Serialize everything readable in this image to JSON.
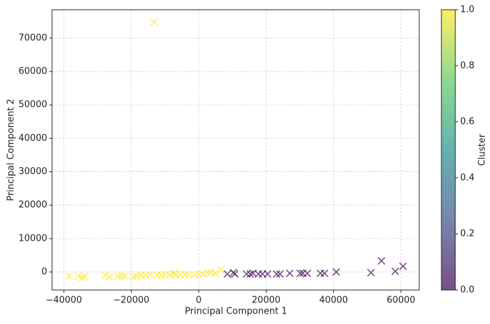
{
  "chart_data": {
    "type": "scatter",
    "xlabel": "Principal Component 1",
    "ylabel": "Principal Component 2",
    "x": [
      -38350,
      -35700,
      -34600,
      -33800,
      -27800,
      -26400,
      -23900,
      -22900,
      -21900,
      -19400,
      -18400,
      -17100,
      -15700,
      -14400,
      -13200,
      -12400,
      -11100,
      -9900,
      -8500,
      -7400,
      -6800,
      -5400,
      -4100,
      -2900,
      -1200,
      0,
      1200,
      2500,
      3500,
      4900,
      6600,
      8500,
      10300,
      10700,
      14200,
      15300,
      16100,
      17700,
      18900,
      20400,
      23100,
      24100,
      27000,
      30100,
      30900,
      32200,
      36100,
      37300,
      40800,
      51100,
      54200,
      58300,
      60600
    ],
    "y": [
      -1250,
      -1250,
      -1660,
      -1450,
      -1000,
      -1450,
      -1250,
      -1250,
      -1250,
      -1450,
      -1250,
      -1000,
      -1000,
      -800,
      74800,
      -1000,
      -1000,
      -800,
      -800,
      -400,
      -800,
      -800,
      -800,
      -800,
      -800,
      -800,
      -600,
      -200,
      -200,
      -400,
      600,
      -600,
      -200,
      -600,
      -600,
      -600,
      -400,
      -600,
      -600,
      -600,
      -600,
      -600,
      -400,
      -400,
      -400,
      -400,
      -400,
      -400,
      0,
      -200,
      3300,
      200,
      1700
    ],
    "cluster": [
      1,
      1,
      1,
      1,
      1,
      1,
      1,
      1,
      1,
      1,
      1,
      1,
      1,
      1,
      1,
      1,
      1,
      1,
      1,
      1,
      1,
      1,
      1,
      1,
      1,
      1,
      1,
      1,
      1,
      1,
      1,
      0,
      0,
      0,
      0,
      0,
      0,
      0,
      0,
      0,
      0,
      0,
      0,
      0,
      0,
      0,
      0,
      0,
      0,
      0,
      0,
      0,
      0
    ],
    "xlim": [
      -43500,
      65400
    ],
    "ylim": [
      -5400,
      78500
    ],
    "xticks": [
      {
        "value": -40000,
        "label": "−40000"
      },
      {
        "value": -20000,
        "label": "−20000"
      },
      0,
      20000,
      40000,
      60000
    ],
    "yticks": [
      0,
      10000,
      20000,
      30000,
      40000,
      50000,
      60000,
      70000
    ],
    "grid": true,
    "marker": "x",
    "alpha": 0.7,
    "colormap": [
      "#440154",
      "#3b528b",
      "#21918c",
      "#5ec962",
      "#fde725"
    ],
    "colorbar": {
      "label": "Cluster",
      "lim": [
        0,
        1
      ],
      "ticks": [
        {
          "value": 0,
          "label": "0.0"
        },
        {
          "value": 0.2,
          "label": "0.2"
        },
        {
          "value": 0.4,
          "label": "0.4"
        },
        {
          "value": 0.6,
          "label": "0.6"
        },
        {
          "value": 0.8,
          "label": "0.8"
        },
        {
          "value": 1,
          "label": "1.0"
        }
      ]
    }
  }
}
